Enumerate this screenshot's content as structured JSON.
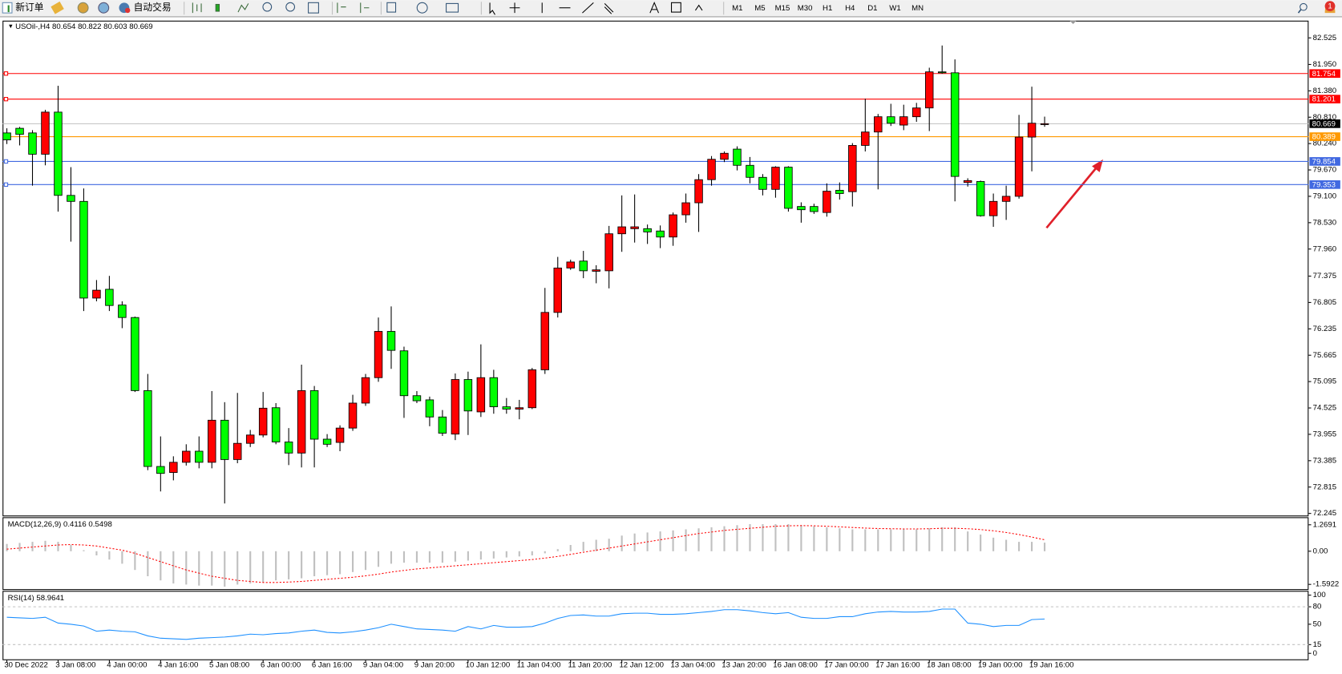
{
  "toolbar": {
    "new_order": "新订单",
    "auto_trading": "自动交易",
    "timeframes": [
      "M1",
      "M5",
      "M15",
      "M30",
      "H1",
      "H4",
      "D1",
      "W1",
      "MN"
    ],
    "notifications": "1"
  },
  "chart_data": [
    {
      "type": "candlestick",
      "title": "USOil-,H4",
      "up_color": "#ff0000",
      "down_color": "#00ff00",
      "grid": false,
      "categories": [
        "30 Dec 2022",
        null,
        null,
        null,
        "3 Jan 08:00",
        null,
        null,
        null,
        "4 Jan 00:00",
        null,
        null,
        null,
        "4 Jan 16:00",
        null,
        null,
        null,
        "5 Jan 08:00",
        null,
        null,
        null,
        "6 Jan 00:00",
        null,
        null,
        null,
        "6 Jan 16:00",
        null,
        null,
        null,
        "9 Jan 04:00",
        null,
        null,
        null,
        "9 Jan 20:00",
        null,
        null,
        null,
        "10 Jan 12:00",
        null,
        null,
        null,
        "11 Jan 04:00",
        null,
        null,
        null,
        "11 Jan 20:00",
        null,
        null,
        null,
        "12 Jan 12:00",
        null,
        null,
        null,
        "13 Jan 04:00",
        null,
        null,
        null,
        "13 Jan 20:00",
        null,
        null,
        null,
        "16 Jan 08:00",
        null,
        null,
        null,
        "17 Jan 00:00",
        null,
        null,
        null,
        "17 Jan 16:00",
        null,
        null,
        null,
        "18 Jan 08:00",
        null,
        null,
        null,
        "19 Jan 00:00",
        null,
        null,
        null,
        "19 Jan 16:00",
        null
      ],
      "ohlc": [
        [
          80.47,
          80.57,
          80.23,
          80.32
        ],
        [
          80.57,
          80.6,
          80.2,
          80.44
        ],
        [
          80.47,
          80.53,
          79.33,
          80.01
        ],
        [
          80.01,
          80.97,
          79.77,
          80.92
        ],
        [
          80.92,
          81.49,
          78.77,
          79.12
        ],
        [
          79.12,
          79.73,
          78.12,
          78.99
        ],
        [
          78.99,
          79.27,
          76.62,
          76.9
        ],
        [
          76.9,
          77.29,
          76.83,
          77.07
        ],
        [
          77.09,
          77.38,
          76.62,
          76.74
        ],
        [
          76.75,
          76.83,
          76.25,
          76.48
        ],
        [
          76.48,
          76.5,
          74.87,
          74.9
        ],
        [
          74.9,
          75.26,
          73.18,
          73.26
        ],
        [
          73.26,
          73.91,
          72.72,
          73.11
        ],
        [
          73.13,
          73.48,
          72.96,
          73.35
        ],
        [
          73.35,
          73.74,
          73.28,
          73.59
        ],
        [
          73.59,
          73.91,
          73.22,
          73.35
        ],
        [
          73.35,
          74.89,
          73.22,
          74.26
        ],
        [
          74.26,
          74.65,
          72.46,
          73.41
        ],
        [
          73.41,
          74.85,
          73.33,
          73.76
        ],
        [
          73.76,
          74.05,
          73.68,
          73.94
        ],
        [
          73.94,
          74.87,
          73.89,
          74.52
        ],
        [
          74.53,
          74.63,
          73.74,
          73.79
        ],
        [
          73.79,
          74.09,
          73.29,
          73.55
        ],
        [
          73.55,
          75.46,
          73.24,
          74.9
        ],
        [
          74.9,
          75.0,
          73.24,
          73.85
        ],
        [
          73.85,
          73.96,
          73.68,
          73.74
        ],
        [
          73.78,
          74.15,
          73.59,
          74.09
        ],
        [
          74.09,
          74.81,
          74.03,
          74.63
        ],
        [
          74.63,
          75.26,
          74.57,
          75.18
        ],
        [
          75.18,
          76.48,
          75.09,
          76.18
        ],
        [
          76.18,
          76.72,
          75.37,
          75.77
        ],
        [
          75.76,
          75.85,
          74.31,
          74.79
        ],
        [
          74.79,
          74.89,
          74.63,
          74.68
        ],
        [
          74.7,
          74.77,
          74.13,
          74.33
        ],
        [
          74.33,
          74.48,
          73.92,
          73.98
        ],
        [
          73.96,
          75.27,
          73.83,
          75.14
        ],
        [
          75.14,
          75.31,
          73.94,
          74.46
        ],
        [
          74.44,
          75.9,
          74.33,
          75.18
        ],
        [
          75.18,
          75.35,
          74.4,
          74.55
        ],
        [
          74.55,
          74.74,
          74.4,
          74.5
        ],
        [
          74.5,
          74.7,
          74.28,
          74.53
        ],
        [
          74.53,
          75.39,
          74.5,
          75.35
        ],
        [
          75.35,
          77.12,
          75.26,
          76.59
        ],
        [
          76.59,
          77.79,
          76.48,
          77.55
        ],
        [
          77.55,
          77.73,
          77.51,
          77.68
        ],
        [
          77.7,
          77.92,
          77.33,
          77.49
        ],
        [
          77.48,
          77.61,
          77.22,
          77.51
        ],
        [
          77.49,
          78.46,
          77.11,
          78.29
        ],
        [
          78.29,
          79.12,
          77.9,
          78.44
        ],
        [
          78.4,
          79.14,
          78.1,
          78.44
        ],
        [
          78.4,
          78.49,
          78.07,
          78.33
        ],
        [
          78.35,
          78.47,
          77.98,
          78.22
        ],
        [
          78.22,
          78.75,
          78.03,
          78.7
        ],
        [
          78.7,
          79.16,
          78.53,
          78.96
        ],
        [
          78.96,
          79.58,
          78.33,
          79.46
        ],
        [
          79.46,
          79.97,
          79.33,
          79.9
        ],
        [
          79.9,
          80.07,
          79.84,
          80.03
        ],
        [
          80.12,
          80.18,
          79.66,
          79.77
        ],
        [
          79.77,
          79.95,
          79.38,
          79.51
        ],
        [
          79.51,
          79.58,
          79.12,
          79.25
        ],
        [
          79.25,
          79.75,
          79.07,
          79.73
        ],
        [
          79.73,
          79.75,
          78.77,
          78.84
        ],
        [
          78.88,
          78.97,
          78.53,
          78.81
        ],
        [
          78.88,
          78.94,
          78.72,
          78.77
        ],
        [
          78.75,
          79.38,
          78.66,
          79.21
        ],
        [
          79.23,
          79.4,
          79.03,
          79.16
        ],
        [
          79.2,
          80.25,
          78.88,
          80.2
        ],
        [
          80.2,
          81.21,
          80.07,
          80.49
        ],
        [
          80.49,
          80.88,
          79.25,
          80.82
        ],
        [
          80.82,
          81.1,
          80.62,
          80.68
        ],
        [
          80.64,
          81.08,
          80.53,
          80.82
        ],
        [
          80.82,
          81.12,
          80.71,
          81.01
        ],
        [
          81.01,
          81.88,
          80.51,
          81.79
        ],
        [
          81.79,
          82.36,
          81.75,
          81.77
        ],
        [
          81.77,
          82.06,
          78.99,
          79.53
        ],
        [
          79.4,
          79.49,
          79.31,
          79.44
        ],
        [
          79.42,
          79.44,
          78.66,
          78.68
        ],
        [
          78.68,
          79.16,
          78.44,
          78.99
        ],
        [
          78.99,
          79.33,
          78.59,
          79.1
        ],
        [
          79.1,
          80.86,
          79.05,
          80.38
        ],
        [
          80.38,
          81.47,
          79.64,
          80.68
        ],
        [
          80.654,
          80.822,
          80.603,
          80.669
        ]
      ],
      "ylim": [
        72.2,
        82.86
      ],
      "yticks": [
        82.525,
        {
          "value": 81.95,
          "label": "81.950"
        },
        {
          "value": 81.38,
          "label": "81.380"
        },
        {
          "value": 80.81,
          "label": "80.810"
        },
        {
          "value": 80.24,
          "label": "80.240"
        },
        {
          "value": 79.67,
          "label": "79.670"
        },
        {
          "value": 79.1,
          "label": "79.100"
        },
        {
          "value": 78.53,
          "label": "78.530"
        },
        {
          "value": 77.96,
          "label": "77.960"
        },
        77.375,
        76.805,
        76.235,
        75.665,
        75.095,
        74.525,
        73.955,
        73.385,
        72.815,
        72.245
      ],
      "hlines": [
        {
          "value": 81.754,
          "color": "#ff0000"
        },
        {
          "value": 81.201,
          "color": "#ff0000"
        },
        {
          "value": 80.389,
          "color": "#ff9900"
        },
        {
          "value": 79.854,
          "color": "#4169e1"
        },
        {
          "value": 79.353,
          "color": "#4169e1"
        }
      ]
    },
    {
      "type": "macd",
      "title": "MACD(12,26,9)",
      "histogram_color": "#c0c0c0",
      "signal_color": "#ff0000",
      "histogram": [
        0.35,
        0.4,
        0.45,
        0.5,
        0.45,
        0.3,
        0.05,
        -0.2,
        -0.4,
        -0.6,
        -0.9,
        -1.2,
        -1.4,
        -1.55,
        -1.6,
        -1.65,
        -1.65,
        -1.7,
        -1.6,
        -1.55,
        -1.5,
        -1.4,
        -1.35,
        -1.3,
        -1.2,
        -1.15,
        -1.1,
        -1.0,
        -0.9,
        -0.75,
        -0.6,
        -0.55,
        -0.55,
        -0.55,
        -0.55,
        -0.5,
        -0.45,
        -0.4,
        -0.35,
        -0.3,
        -0.25,
        -0.2,
        -0.1,
        0.1,
        0.3,
        0.45,
        0.55,
        0.6,
        0.75,
        0.85,
        0.9,
        0.95,
        1.0,
        1.05,
        1.1,
        1.15,
        1.2,
        1.25,
        1.3,
        1.3,
        1.3,
        1.3,
        1.25,
        1.2,
        1.15,
        1.1,
        1.05,
        1.05,
        1.05,
        1.05,
        1.05,
        1.05,
        1.1,
        1.15,
        1.15,
        0.95,
        0.8,
        0.65,
        0.55,
        0.45,
        0.45,
        0.4116
      ],
      "signal": [
        0.1,
        0.15,
        0.2,
        0.25,
        0.3,
        0.32,
        0.3,
        0.25,
        0.15,
        0.05,
        -0.1,
        -0.3,
        -0.5,
        -0.7,
        -0.9,
        -1.05,
        -1.2,
        -1.3,
        -1.4,
        -1.45,
        -1.5,
        -1.5,
        -1.48,
        -1.45,
        -1.4,
        -1.35,
        -1.3,
        -1.25,
        -1.18,
        -1.1,
        -1.0,
        -0.92,
        -0.85,
        -0.8,
        -0.75,
        -0.7,
        -0.65,
        -0.6,
        -0.55,
        -0.5,
        -0.45,
        -0.4,
        -0.33,
        -0.25,
        -0.15,
        -0.05,
        0.05,
        0.15,
        0.25,
        0.35,
        0.45,
        0.55,
        0.65,
        0.75,
        0.85,
        0.92,
        1.0,
        1.05,
        1.1,
        1.15,
        1.2,
        1.22,
        1.23,
        1.22,
        1.2,
        1.17,
        1.14,
        1.11,
        1.09,
        1.08,
        1.07,
        1.07,
        1.08,
        1.1,
        1.1,
        1.08,
        1.04,
        0.98,
        0.9,
        0.8,
        0.68,
        0.5498
      ],
      "ylim": [
        -1.82,
        1.55
      ],
      "yticks": [
        1.2691,
        {
          "value": 0,
          "label": "0.00"
        },
        -1.5922
      ]
    },
    {
      "type": "rsi",
      "title": "RSI(14)",
      "color": "#1e90ff",
      "values": [
        62,
        61,
        60,
        62,
        52,
        50,
        47,
        38,
        40,
        38,
        37,
        30,
        26,
        25,
        24,
        26,
        27,
        28,
        30,
        33,
        32,
        34,
        35,
        38,
        40,
        36,
        35,
        37,
        40,
        44,
        50,
        46,
        42,
        41,
        40,
        38,
        46,
        42,
        48,
        45,
        45,
        46,
        52,
        60,
        65,
        66,
        64,
        64,
        68,
        69,
        69,
        67,
        67,
        68,
        70,
        72,
        75,
        75,
        73,
        70,
        68,
        70,
        62,
        60,
        60,
        63,
        63,
        68,
        71,
        72,
        71,
        71,
        72,
        76,
        76,
        52,
        50,
        46,
        48,
        48,
        58,
        58.9641
      ],
      "ylim": [
        0,
        100
      ],
      "yticks": [
        100,
        80,
        50,
        15,
        0
      ],
      "levels": [
        80,
        15
      ]
    }
  ]
}
